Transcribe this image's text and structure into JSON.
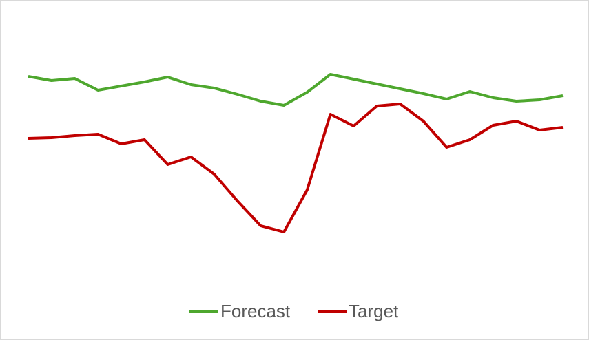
{
  "chart_data": {
    "type": "line",
    "categories": [
      null,
      null,
      null,
      null,
      null,
      null,
      null,
      null,
      null,
      null,
      null,
      null,
      null,
      null,
      null,
      null,
      null,
      null,
      null,
      null,
      null,
      null,
      null,
      null
    ],
    "series": [
      {
        "name": "Forecast",
        "color": "#4ea72e",
        "values": [
          289,
          283,
          286,
          269,
          275,
          281,
          288,
          277,
          272,
          263,
          253,
          247,
          266,
          292,
          285,
          278,
          271,
          264,
          256,
          267,
          258,
          253,
          255,
          261
        ]
      },
      {
        "name": "Target",
        "color": "#c00000",
        "values": [
          199,
          200,
          203,
          205,
          191,
          197,
          161,
          172,
          147,
          108,
          72,
          63,
          124,
          234,
          217,
          246,
          249,
          224,
          186,
          197,
          218,
          224,
          211,
          215
        ]
      }
    ],
    "legend": "bottom"
  }
}
